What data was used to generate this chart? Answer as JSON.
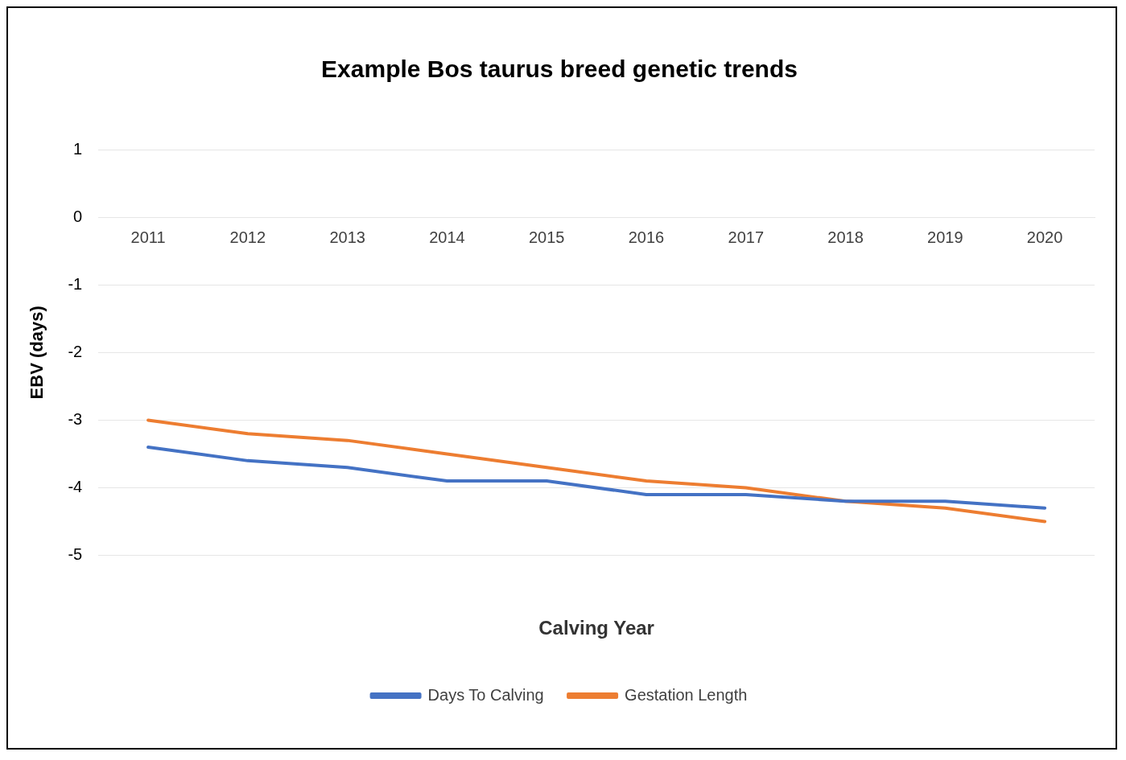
{
  "chart_data": {
    "type": "line",
    "title": "Example Bos taurus breed genetic trends",
    "xlabel": "Calving Year",
    "ylabel": "EBV (days)",
    "categories": [
      "2011",
      "2012",
      "2013",
      "2014",
      "2015",
      "2016",
      "2017",
      "2018",
      "2019",
      "2020"
    ],
    "series": [
      {
        "name": "Days To Calving",
        "color": "#4472c4",
        "values": [
          -3.4,
          -3.6,
          -3.7,
          -3.9,
          -3.9,
          -4.1,
          -4.1,
          -4.2,
          -4.2,
          -4.3
        ]
      },
      {
        "name": "Gestation Length",
        "color": "#ed7d31",
        "values": [
          -3.0,
          -3.2,
          -3.3,
          -3.5,
          -3.7,
          -3.9,
          -4.0,
          -4.2,
          -4.3,
          -4.5
        ]
      }
    ],
    "ylim": [
      -5,
      1
    ],
    "yticks": [
      -5,
      -4,
      -3,
      -2,
      -1,
      0,
      1
    ],
    "grid": "y",
    "legend": "bottom",
    "marker": "none",
    "line_style": "solid"
  }
}
